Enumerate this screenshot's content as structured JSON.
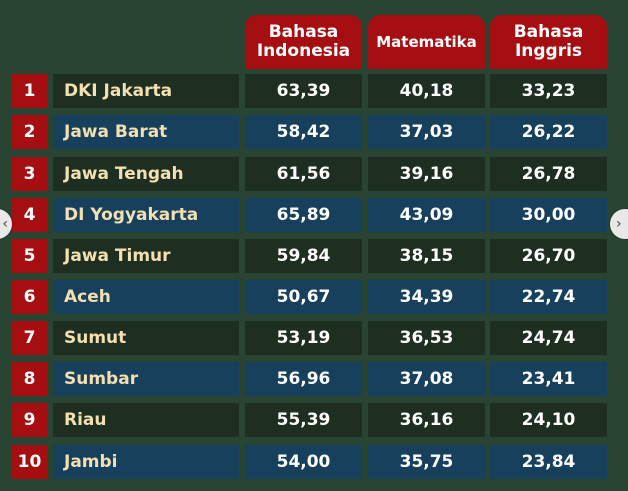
{
  "headers": {
    "bahasa_indonesia": "Bahasa\nIndonesia",
    "matematika": "Matematika",
    "bahasa_inggris": "Bahasa\nInggris"
  },
  "rows": [
    {
      "rank": "1",
      "province": "DKI Jakarta",
      "indonesia": "63,39",
      "matematika": "40,18",
      "inggris": "33,23"
    },
    {
      "rank": "2",
      "province": "Jawa Barat",
      "indonesia": "58,42",
      "matematika": "37,03",
      "inggris": "26,22"
    },
    {
      "rank": "3",
      "province": "Jawa Tengah",
      "indonesia": "61,56",
      "matematika": "39,16",
      "inggris": "26,78"
    },
    {
      "rank": "4",
      "province": "DI Yogyakarta",
      "indonesia": "65,89",
      "matematika": "43,09",
      "inggris": "30,00"
    },
    {
      "rank": "5",
      "province": "Jawa Timur",
      "indonesia": "59,84",
      "matematika": "38,15",
      "inggris": "26,70"
    },
    {
      "rank": "6",
      "province": "Aceh",
      "indonesia": "50,67",
      "matematika": "34,39",
      "inggris": "22,74"
    },
    {
      "rank": "7",
      "province": "Sumut",
      "indonesia": "53,19",
      "matematika": "36,53",
      "inggris": "24,74"
    },
    {
      "rank": "8",
      "province": "Sumbar",
      "indonesia": "56,96",
      "matematika": "37,08",
      "inggris": "23,41"
    },
    {
      "rank": "9",
      "province": "Riau",
      "indonesia": "55,39",
      "matematika": "36,16",
      "inggris": "24,10"
    },
    {
      "rank": "10",
      "province": "Jambi",
      "indonesia": "54,00",
      "matematika": "35,75",
      "inggris": "23,84"
    }
  ],
  "colors": {
    "background": "#2a4433",
    "header_red": "#a50f12",
    "row_dark_green": "#1e2f22",
    "row_blue": "#17405c",
    "province_text": "#f3dfb0"
  },
  "nav": {
    "prev_icon": "chevron-left-icon",
    "next_icon": "chevron-right-icon"
  }
}
